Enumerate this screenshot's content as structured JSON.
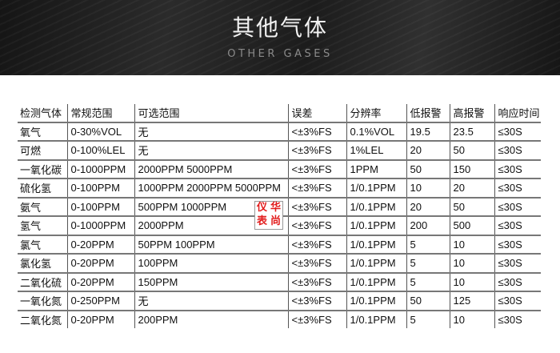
{
  "banner": {
    "title": "其他气体",
    "subtitle": "OTHER GASES"
  },
  "table": {
    "headers": [
      "检测气体",
      "常规范围",
      "可选范围",
      "误差",
      "分辨率",
      "低报警",
      "高报警",
      "响应时间"
    ],
    "rows": [
      [
        "氧气",
        "0-30%VOL",
        "无",
        "<±3%FS",
        "0.1%VOL",
        "19.5",
        "23.5",
        "≤30S"
      ],
      [
        "可燃",
        "0-100%LEL",
        "无",
        "<±3%FS",
        "1%LEL",
        "20",
        "50",
        "≤30S"
      ],
      [
        "一氧化碳",
        "0-1000PPM",
        "2000PPM 5000PPM",
        "<±3%FS",
        "1PPM",
        "50",
        "150",
        "≤30S"
      ],
      [
        "硫化氢",
        "0-100PPM",
        "1000PPM 2000PPM 5000PPM",
        "<±3%FS",
        "1/0.1PPM",
        "10",
        "20",
        "≤30S"
      ],
      [
        "氨气",
        "0-100PPM",
        "500PPM 1000PPM",
        "<±3%FS",
        "1/0.1PPM",
        "20",
        "50",
        "≤30S"
      ],
      [
        "氢气",
        "0-1000PPM",
        "2000PPM",
        "<±3%FS",
        "1/0.1PPM",
        "200",
        "500",
        "≤30S"
      ],
      [
        "氯气",
        "0-20PPM",
        "50PPM 100PPM",
        "<±3%FS",
        "1/0.1PPM",
        "5",
        "10",
        "≤30S"
      ],
      [
        "氯化氢",
        "0-20PPM",
        "100PPM",
        "<±3%FS",
        "1/0.1PPM",
        "5",
        "10",
        "≤30S"
      ],
      [
        "二氧化硫",
        "0-20PPM",
        "150PPM",
        "<±3%FS",
        "1/0.1PPM",
        "5",
        "10",
        "≤30S"
      ],
      [
        "一氧化氮",
        "0-250PPM",
        "无",
        "<±3%FS",
        "1/0.1PPM",
        "50",
        "125",
        "≤30S"
      ],
      [
        "二氧化氮",
        "0-20PPM",
        "200PPM",
        "<±3%FS",
        "1/0.1PPM",
        "5",
        "10",
        "≤30S"
      ]
    ]
  },
  "stamp": {
    "chars": [
      "仪",
      "华",
      "表",
      "尚"
    ],
    "color": "#e21b1b"
  }
}
